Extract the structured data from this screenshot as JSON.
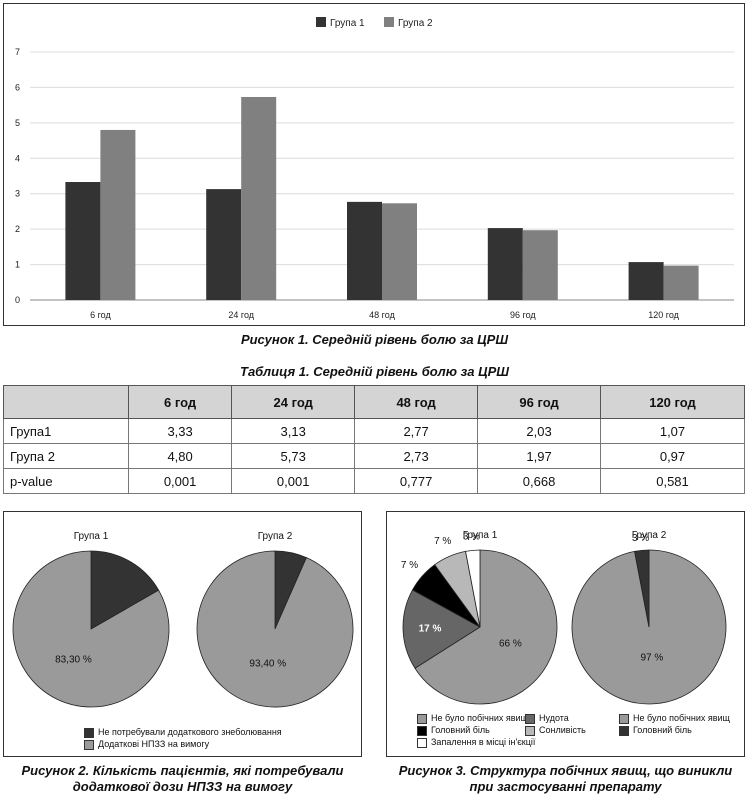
{
  "figure1": {
    "caption": "Рисунок 1. Середній рівень болю за ЦРШ"
  },
  "table1": {
    "title": "Таблиця 1. Середній рівень болю за ЦРШ",
    "headers": [
      "",
      "6 год",
      "24 год",
      "48 год",
      "96 год",
      "120 год"
    ],
    "rows": [
      [
        "Група1",
        "3,33",
        "3,13",
        "2,77",
        "2,03",
        "1,07"
      ],
      [
        "Група 2",
        "4,80",
        "5,73",
        "2,73",
        "1,97",
        "0,97"
      ],
      [
        "p-value",
        "0,001",
        "0,001",
        "0,777",
        "0,668",
        "0,581"
      ]
    ]
  },
  "figure2": {
    "caption_line1": "Рисунок 2. Кількість пацієнтів, які потребували",
    "caption_line2": "додаткової дози НПЗЗ на вимогу",
    "legend": [
      "Не потребували додаткового знеболювання",
      "Додаткові НПЗЗ на вимогу"
    ]
  },
  "figure3": {
    "caption_line1": "Рисунок 3. Структура побічних явищ, що виникли",
    "caption_line2": "при застосуванні препарату",
    "legend_left": [
      "Не було побічних явищ",
      "Головний біль",
      "Запалення в місці ін'єкції"
    ],
    "legend_mid": [
      "Нудота",
      "Сонливість"
    ],
    "legend_right": [
      "Не було побічних явищ",
      "Головний біль"
    ]
  },
  "colors": {
    "dark": "#333333",
    "mid": "#808080",
    "light": "#9a9a9a",
    "black": "#000000",
    "pale": "#b8b8b8",
    "white": "#ffffff",
    "medium": "#666666"
  },
  "chart_data": [
    {
      "type": "bar",
      "title": "",
      "categories": [
        "6 год",
        "24 год",
        "48 год",
        "96 год",
        "120 год"
      ],
      "series": [
        {
          "name": "Група 1",
          "values": [
            3.33,
            3.13,
            2.77,
            2.03,
            1.07
          ],
          "color": "#333333"
        },
        {
          "name": "Група 2",
          "values": [
            4.8,
            5.73,
            2.73,
            1.97,
            0.97
          ],
          "color": "#808080"
        }
      ],
      "ylim": [
        0,
        7
      ],
      "yticks": [
        "0",
        "1",
        "2",
        "3",
        "4",
        "5",
        "6",
        "7"
      ],
      "grid": true,
      "legend_position": "top"
    },
    {
      "type": "pie",
      "title": "Група 1",
      "slices": [
        {
          "label": "Не потребували додаткового знеболювання",
          "value": 16.7,
          "color": "#333333",
          "text": ""
        },
        {
          "label": "Додаткові НПЗЗ на вимогу",
          "value": 83.3,
          "color": "#9a9a9a",
          "text": "83,30 %"
        }
      ]
    },
    {
      "type": "pie",
      "title": "Група 2",
      "slices": [
        {
          "label": "Не потребували додаткового знеболювання",
          "value": 6.6,
          "color": "#333333",
          "text": ""
        },
        {
          "label": "Додаткові НПЗЗ на вимогу",
          "value": 93.4,
          "color": "#9a9a9a",
          "text": "93,40 %"
        }
      ]
    },
    {
      "type": "pie",
      "title": "Група 1",
      "slices": [
        {
          "label": "Не було побічних явищ",
          "value": 66,
          "color": "#9a9a9a",
          "text": "66 %"
        },
        {
          "label": "Нудота",
          "value": 17,
          "color": "#666666",
          "text": "17 %"
        },
        {
          "label": "Головний біль",
          "value": 7,
          "color": "#000000",
          "text": "7 %"
        },
        {
          "label": "Сонливість",
          "value": 7,
          "color": "#b8b8b8",
          "text": "7 %"
        },
        {
          "label": "Запалення в місці ін'єкції",
          "value": 3,
          "color": "#ffffff",
          "text": "3 %"
        }
      ]
    },
    {
      "type": "pie",
      "title": "Група 2",
      "slices": [
        {
          "label": "Не було побічних явищ",
          "value": 97,
          "color": "#9a9a9a",
          "text": "97 %"
        },
        {
          "label": "Головний біль",
          "value": 3,
          "color": "#333333",
          "text": "3 %"
        }
      ]
    }
  ]
}
